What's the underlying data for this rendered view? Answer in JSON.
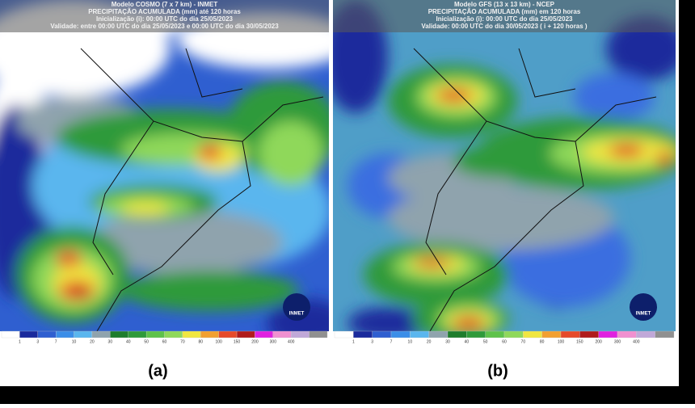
{
  "panels": [
    {
      "header": [
        "Modelo COSMO (7 x 7 km) - INMET",
        "PRECIPITAÇÃO ACUMULADA (mm) até 120 horas",
        "Inicialização (i): 00:00 UTC do dia 25/05/2023",
        "Validade: entre 00:00 UTC do dia 25/05/2023 e 00:00 UTC do dia 30/05/2023"
      ],
      "colorbar": [
        "1",
        "3",
        "7",
        "10",
        "20",
        "30",
        "40",
        "50",
        "60",
        "70",
        "80",
        "100",
        "150",
        "200",
        "300",
        "400"
      ],
      "logo": "INMET",
      "caption": "(a)"
    },
    {
      "header": [
        "Modelo GFS (13 x 13 km) - NCEP",
        "PRECIPITAÇÃO ACUMULADA (mm) em 120 horas",
        "Inicialização (i): 00:00 UTC do dia 25/05/2023",
        "Validade: 00:00 UTC do dia 30/05/2023 ( i + 120 horas )"
      ],
      "colorbar": [
        "1",
        "3",
        "7",
        "10",
        "20",
        "30",
        "40",
        "50",
        "60",
        "70",
        "80",
        "100",
        "150",
        "200",
        "300",
        "400"
      ],
      "logo": "INMET",
      "caption": "(b)"
    }
  ]
}
